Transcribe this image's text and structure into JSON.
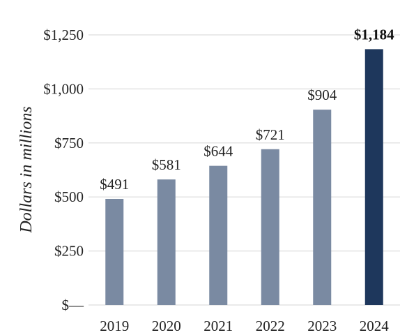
{
  "chart_data": {
    "type": "bar",
    "categories": [
      "2019",
      "2020",
      "2021",
      "2022",
      "2023",
      "2024"
    ],
    "values": [
      491,
      581,
      644,
      721,
      904,
      1184
    ],
    "data_labels": [
      "$491",
      "$581",
      "$644",
      "$721",
      "$904",
      "$1,184"
    ],
    "highlight_index": 5,
    "ylabel": "Dollars in millions",
    "ylim": [
      0,
      1250
    ],
    "yticks": [
      0,
      250,
      500,
      750,
      1000,
      1250
    ],
    "ytick_labels": [
      "$—",
      "$250",
      "$500",
      "$750",
      "$1,000",
      "$1,250"
    ],
    "grid": true,
    "colors": {
      "bar": "#7a8aa2",
      "highlight": "#1e375c"
    }
  }
}
